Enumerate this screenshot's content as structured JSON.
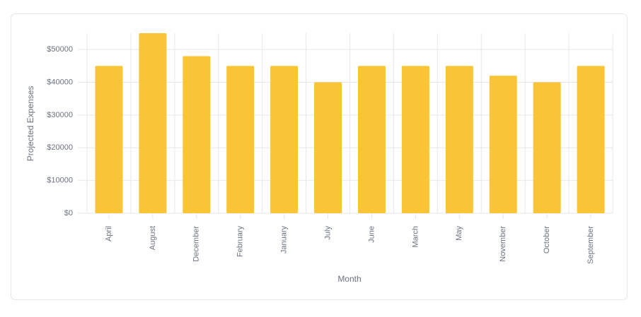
{
  "chart_data": {
    "type": "bar",
    "x_label": "Month",
    "y_label": "Projected Expenses",
    "categories": [
      "April",
      "August",
      "December",
      "February",
      "January",
      "July",
      "June",
      "March",
      "May",
      "November",
      "October",
      "September"
    ],
    "values": [
      45000,
      55000,
      48000,
      45000,
      45000,
      40000,
      45000,
      45000,
      45000,
      42000,
      40000,
      45000
    ],
    "color": "#f9c536",
    "ylim": [
      0,
      55000
    ],
    "yticks": [
      {
        "value": 0,
        "label": "$0"
      },
      {
        "value": 10000,
        "label": "$10000"
      },
      {
        "value": 20000,
        "label": "$20000"
      },
      {
        "value": 30000,
        "label": "$30000"
      },
      {
        "value": 40000,
        "label": "$40000"
      },
      {
        "value": 50000,
        "label": "$50000"
      }
    ],
    "grid": true
  }
}
